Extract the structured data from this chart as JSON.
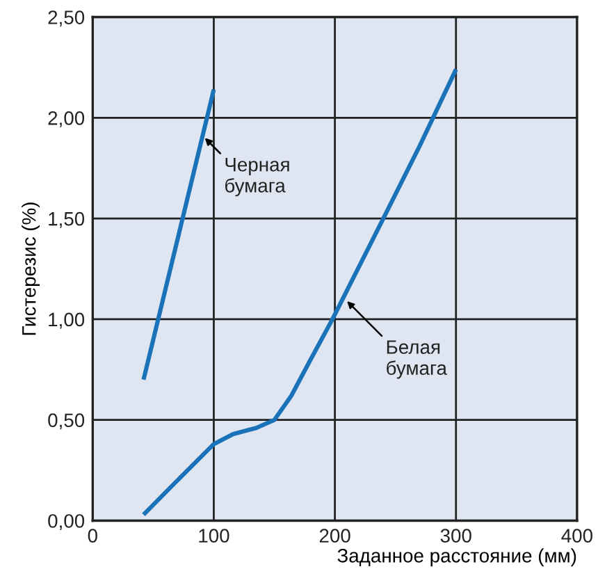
{
  "chart_data": {
    "type": "line",
    "xlabel": "Заданное расстояние (мм)",
    "ylabel": "Гистерезис (%)",
    "series": [
      {
        "color": "#1a73b8",
        "x": [
          42,
          100
        ],
        "values": [
          0.7,
          2.14
        ]
      },
      {
        "color": "#1a73b8",
        "x": [
          42,
          70,
          100,
          116,
          135,
          150,
          164,
          180,
          198,
          240,
          270,
          300
        ],
        "values": [
          0.03,
          0.2,
          0.38,
          0.43,
          0.46,
          0.5,
          0.62,
          0.8,
          1.0,
          1.5,
          1.86,
          2.24
        ]
      }
    ],
    "annotations": [
      {
        "text": "Черная\nбумага",
        "x": 92.6,
        "y": 1.9
      },
      {
        "text": "Белая\nбумага",
        "x": 210,
        "y": 1.09
      }
    ],
    "xlim": [
      0,
      400
    ],
    "ylim": [
      0,
      2.5
    ],
    "xticks": [
      0,
      100,
      200,
      300,
      400
    ],
    "yticks": [
      {
        "value": 0,
        "label": "0,00"
      },
      {
        "value": 0.5,
        "label": "0,50"
      },
      {
        "value": 1,
        "label": "1,00"
      },
      {
        "value": 1.5,
        "label": "1,50"
      },
      {
        "value": 2,
        "label": "2,00"
      },
      {
        "value": 2.5,
        "label": "2,50"
      }
    ],
    "grid": true,
    "marker": "none",
    "line_style": "solid"
  }
}
